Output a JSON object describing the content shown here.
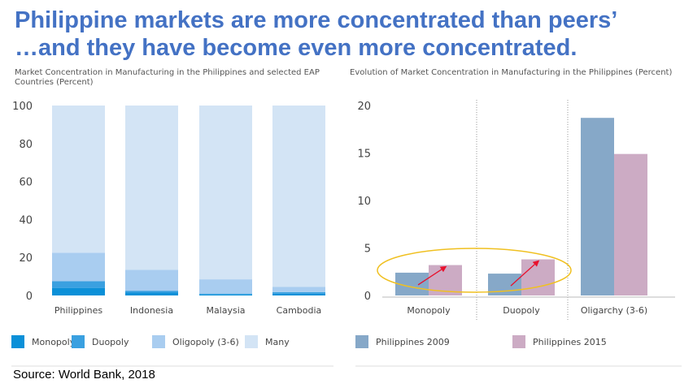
{
  "header": {
    "title_line1": "Philippine markets are more concentrated than peers’",
    "title_line2": "…and they have become even more concentrated."
  },
  "colors": {
    "title": "#4472c4",
    "monopoly": "#0b90d8",
    "duopoly": "#3aa0e0",
    "oligopoly": "#a9cdf0",
    "many": "#d3e4f5",
    "ph2009": "#86a8c8",
    "ph2015": "#ccabc4",
    "ellipse": "#f0c020",
    "arrow": "#e8112d"
  },
  "chart_data": [
    {
      "type": "bar",
      "stacked": true,
      "title": "Market Concentration in Manufacturing in the Philippines and selected EAP Countries (Percent)",
      "title_line1": "Market Concentration in Manufacturing in the Philippines and selected EAP",
      "title_line2": "Countries (Percent)",
      "categories": [
        "Philippines",
        "Indonesia",
        "Malaysia",
        "Cambodia"
      ],
      "series": [
        {
          "name": "Monopoly",
          "values": [
            4,
            1.5,
            0.5,
            1
          ]
        },
        {
          "name": "Duopoly",
          "values": [
            3.5,
            1,
            0.5,
            0.8
          ]
        },
        {
          "name": "Oligopoly (3-6)",
          "values": [
            15,
            11,
            7.5,
            2.7
          ]
        },
        {
          "name": "Many",
          "values": [
            77.5,
            86.5,
            91.5,
            95.5
          ]
        }
      ],
      "yticks": [
        "0",
        "20",
        "40",
        "60",
        "80",
        "100"
      ],
      "ylim": [
        0,
        100
      ],
      "xlabel": "",
      "ylabel": "",
      "legend": [
        "Monopoly",
        "Duopoly",
        "Oligopoly (3-6)",
        "Many"
      ]
    },
    {
      "type": "bar",
      "grouped": true,
      "title": "Evolution of Market Concentration in Manufacturing in the Philippines (Percent)",
      "categories": [
        "Monopoly",
        "Duopoly",
        "Oligarchy (3-6)"
      ],
      "series": [
        {
          "name": "Philippines 2009",
          "values": [
            2.4,
            2.3,
            18.7
          ]
        },
        {
          "name": "Philippines 2015",
          "values": [
            3.2,
            3.8,
            14.9
          ]
        }
      ],
      "yticks": [
        "0",
        "5",
        "10",
        "15",
        "20"
      ],
      "ylim": [
        0,
        20
      ],
      "xlabel": "",
      "ylabel": "",
      "legend": [
        "Philippines 2009",
        "Philippines 2015"
      ],
      "annotation": "ellipse with red arrows highlighting increase in Monopoly and Duopoly"
    }
  ],
  "footer": {
    "source": "Source: World Bank, 2018"
  }
}
